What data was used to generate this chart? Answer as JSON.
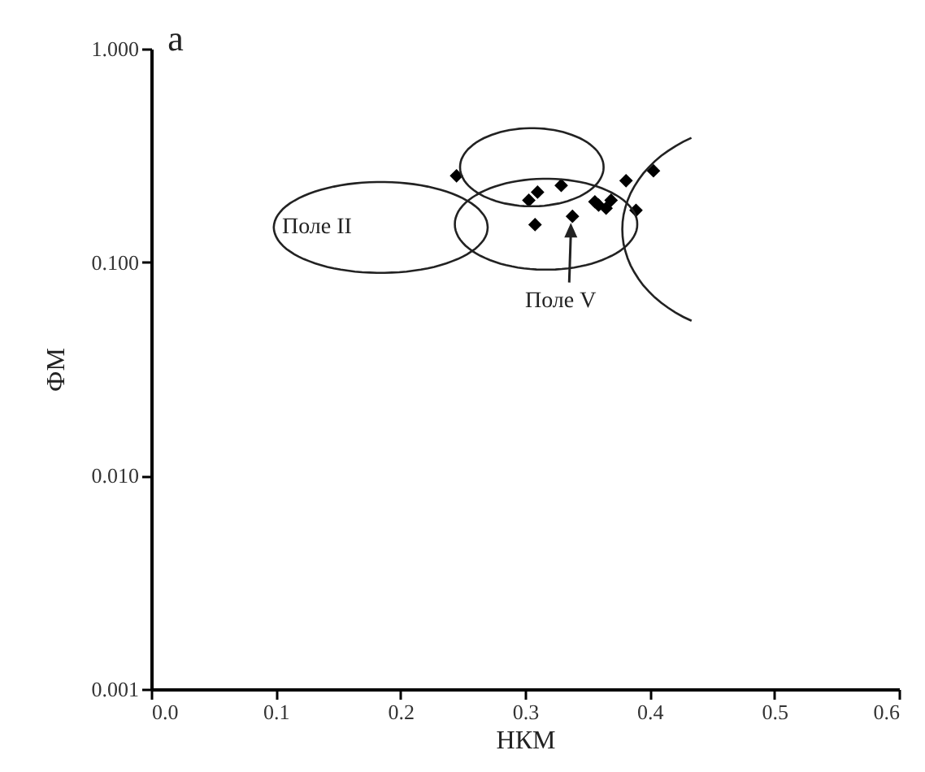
{
  "chart_data": {
    "type": "scatter",
    "xlabel": "НКМ",
    "ylabel": "ФМ",
    "log": "y",
    "marker": "diamond",
    "grid": false,
    "legend": false,
    "xlim": [
      0.0,
      0.6
    ],
    "xticks": [
      {
        "value": 0,
        "label": "0.0"
      },
      0.1,
      0.2,
      0.3,
      0.4,
      0.5,
      0.6
    ],
    "ylim": [
      0.001,
      1.0
    ],
    "yticks": [
      {
        "value": 0.001,
        "label": "0.001"
      },
      {
        "value": 0.01,
        "label": "0.010"
      },
      {
        "value": 0.1,
        "label": "0.100"
      },
      {
        "value": 1,
        "label": "1.000"
      }
    ],
    "series": [
      {
        "color": "#000000",
        "x": [
          0.245,
          0.303,
          0.31,
          0.329,
          0.308,
          0.338,
          0.356,
          0.359,
          0.365,
          0.369,
          0.381,
          0.389,
          0.403
        ],
        "values": [
          0.254,
          0.195,
          0.213,
          0.229,
          0.15,
          0.164,
          0.192,
          0.185,
          0.179,
          0.195,
          0.241,
          0.175,
          0.268
        ]
      }
    ],
    "annotations": [
      "a",
      "Поле II",
      "Поле V"
    ]
  }
}
